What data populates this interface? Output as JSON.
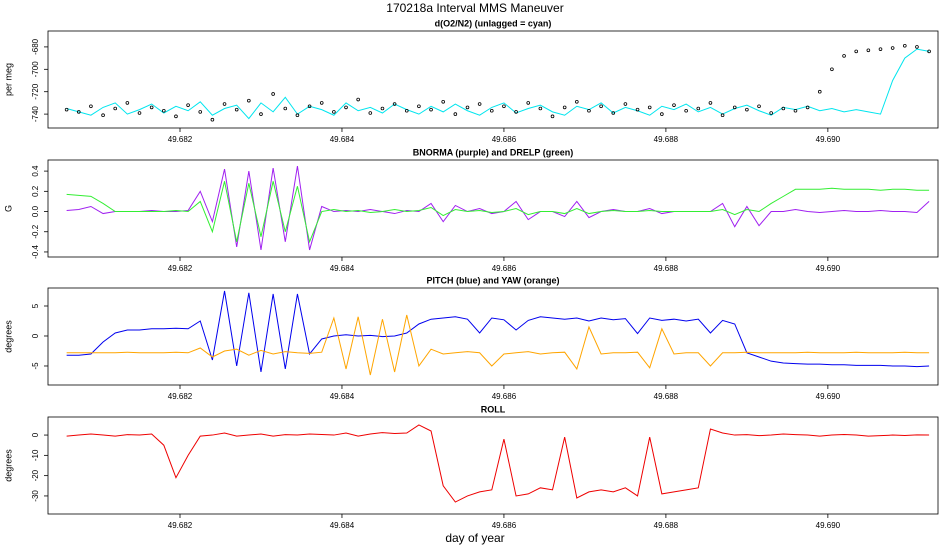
{
  "title": "170218a   Interval MMS Maneuver",
  "xlabel": "day of year",
  "chart_data": [
    {
      "type": "line",
      "title": "d(O2/N2) (unlagged = cyan)",
      "ylabel": "per meg",
      "xlim": [
        49.68037,
        49.69136
      ],
      "xticks": [
        49.682,
        49.684,
        49.686,
        49.688,
        {
          "value": 49.69,
          "label": "49.690"
        }
      ],
      "ylim": [
        -752.4,
        -665.8
      ],
      "yticks": [
        -680,
        -700,
        -720,
        -740
      ],
      "x": [
        49.6806,
        49.68075,
        49.6809,
        49.68105,
        49.6812,
        49.68135,
        49.6815,
        49.68165,
        49.6818,
        49.68195,
        49.6821,
        49.68225,
        49.6824,
        49.68255,
        49.6827,
        49.68285,
        49.683,
        49.68315,
        49.6833,
        49.68345,
        49.6836,
        49.68375,
        49.6839,
        49.68405,
        49.6842,
        49.68435,
        49.6845,
        49.68465,
        49.6848,
        49.68495,
        49.6851,
        49.68525,
        49.6854,
        49.68555,
        49.6857,
        49.68585,
        49.686,
        49.68615,
        49.6863,
        49.68645,
        49.6866,
        49.68675,
        49.6869,
        49.68705,
        49.6872,
        49.68735,
        49.6875,
        49.68765,
        49.6878,
        49.68795,
        49.6881,
        49.68825,
        49.6884,
        49.68855,
        49.6887,
        49.68885,
        49.689,
        49.68915,
        49.6893,
        49.68945,
        49.6896,
        49.68975,
        49.6899,
        49.69005,
        49.6902,
        49.69035,
        49.6905,
        49.69065,
        49.6908,
        49.69095,
        49.6911,
        49.69125
      ],
      "series": [
        {
          "color": "#00e5ee",
          "marker": "line",
          "values": [
            -735,
            -738,
            -741,
            -734,
            -730,
            -740,
            -736,
            -731,
            -739,
            -733,
            -737,
            -729,
            -741,
            -735,
            -732,
            -744,
            -730,
            -738,
            -725,
            -740,
            -733,
            -736,
            -741,
            -730,
            -737,
            -734,
            -739,
            -731,
            -736,
            -740,
            -733,
            -738,
            -731,
            -737,
            -741,
            -734,
            -730,
            -739,
            -735,
            -732,
            -738,
            -741,
            -733,
            -736,
            -730,
            -739,
            -734,
            -737,
            -741,
            -733,
            -736,
            -731,
            -738,
            -734,
            -740,
            -735,
            -732,
            -737,
            -741,
            -734,
            -736,
            -733,
            -737,
            -735,
            -738,
            -736,
            -738,
            -740,
            -710,
            -690,
            -682,
            -684
          ]
        },
        {
          "color": "#000000",
          "marker": "point",
          "values": [
            -736,
            -738,
            -733,
            -741,
            -735,
            -730,
            -739,
            -734,
            -737,
            -742,
            -732,
            -738,
            -745,
            -731,
            -736,
            -728,
            -740,
            -722,
            -735,
            -741,
            -733,
            -730,
            -738,
            -734,
            -727,
            -739,
            -735,
            -731,
            -737,
            -733,
            -736,
            -729,
            -740,
            -734,
            -731,
            -737,
            -733,
            -738,
            -730,
            -735,
            -742,
            -734,
            -729,
            -737,
            -733,
            -739,
            -731,
            -736,
            -734,
            -740,
            -732,
            -737,
            -735,
            -730,
            -741,
            -734,
            -736,
            -733,
            -739,
            -735,
            -737,
            -734,
            -720,
            -700,
            -688,
            -684,
            -683,
            -682,
            -681,
            -679,
            -680,
            -684
          ]
        }
      ]
    },
    {
      "type": "line",
      "title": "BNORMA (purple) and DRELP (green)",
      "ylabel": "G",
      "xlim": [
        49.68037,
        49.69136
      ],
      "xticks": [
        49.682,
        49.684,
        49.686,
        49.688,
        {
          "value": 49.69,
          "label": "49.690"
        }
      ],
      "ylim": [
        -0.45,
        0.51
      ],
      "yticks": [
        0.4,
        0.2,
        {
          "value": 0,
          "label": "0.0"
        },
        -0.2,
        -0.4
      ],
      "x": [
        49.6806,
        49.68075,
        49.6809,
        49.68105,
        49.6812,
        49.68135,
        49.6815,
        49.68165,
        49.6818,
        49.68195,
        49.6821,
        49.68225,
        49.6824,
        49.68255,
        49.6827,
        49.68285,
        49.683,
        49.68315,
        49.6833,
        49.68345,
        49.6836,
        49.68375,
        49.6839,
        49.68405,
        49.6842,
        49.68435,
        49.6845,
        49.68465,
        49.6848,
        49.68495,
        49.6851,
        49.68525,
        49.6854,
        49.68555,
        49.6857,
        49.68585,
        49.686,
        49.68615,
        49.6863,
        49.68645,
        49.6866,
        49.68675,
        49.6869,
        49.68705,
        49.6872,
        49.68735,
        49.6875,
        49.68765,
        49.6878,
        49.68795,
        49.6881,
        49.68825,
        49.6884,
        49.68855,
        49.6887,
        49.68885,
        49.689,
        49.68915,
        49.6893,
        49.68945,
        49.6896,
        49.68975,
        49.6899,
        49.69005,
        49.6902,
        49.69035,
        49.6905,
        49.69065,
        49.6908,
        49.69095,
        49.6911,
        49.69125
      ],
      "series": [
        {
          "color": "#a020f0",
          "marker": "line",
          "values": [
            0.01,
            0.02,
            0.05,
            -0.02,
            0,
            0,
            0,
            0.01,
            0,
            0,
            0.01,
            0.2,
            -0.1,
            0.42,
            -0.35,
            0.4,
            -0.38,
            0.43,
            -0.3,
            0.45,
            -0.38,
            0.05,
            0,
            0.01,
            0,
            0.02,
            0,
            -0.02,
            0.01,
            0,
            0.08,
            -0.1,
            0.06,
            0,
            0.03,
            -0.02,
            0,
            0.1,
            -0.08,
            0,
            0,
            -0.05,
            0.1,
            -0.06,
            0,
            0.02,
            0,
            0,
            0.03,
            -0.02,
            0,
            0,
            0,
            0,
            0.08,
            -0.15,
            0.05,
            -0.14,
            0,
            0,
            0.02,
            0,
            -0.01,
            0,
            0.01,
            0,
            0,
            0.01,
            0,
            0,
            -0.01,
            0.1
          ]
        },
        {
          "color": "#33ee33",
          "marker": "line",
          "values": [
            0.17,
            0.16,
            0.15,
            0.08,
            0,
            0,
            0,
            0,
            0,
            0.01,
            0,
            0.1,
            -0.2,
            0.3,
            -0.3,
            0.28,
            -0.25,
            0.3,
            -0.2,
            0.25,
            -0.3,
            0,
            0.02,
            0,
            0.01,
            -0.01,
            0,
            0.02,
            0,
            0.01,
            0.04,
            -0.04,
            0.02,
            0,
            0.01,
            -0.01,
            0,
            0.03,
            -0.03,
            0,
            0,
            -0.02,
            0.03,
            -0.02,
            0,
            0.01,
            0,
            0,
            0.01,
            0,
            0,
            0,
            0,
            0,
            0.02,
            -0.03,
            0.02,
            0,
            0.08,
            0.15,
            0.22,
            0.22,
            0.22,
            0.23,
            0.22,
            0.22,
            0.22,
            0.21,
            0.22,
            0.22,
            0.21,
            0.21
          ]
        }
      ]
    },
    {
      "type": "line",
      "title": "PITCH (blue) and YAW (orange)",
      "ylabel": "degrees",
      "xlim": [
        49.68037,
        49.69136
      ],
      "xticks": [
        49.682,
        49.684,
        49.686,
        49.688,
        {
          "value": 49.69,
          "label": "49.690"
        }
      ],
      "ylim": [
        -8.17,
        8
      ],
      "yticks": [
        5,
        0,
        -5
      ],
      "x": [
        49.6806,
        49.68075,
        49.6809,
        49.68105,
        49.6812,
        49.68135,
        49.6815,
        49.68165,
        49.6818,
        49.68195,
        49.6821,
        49.68225,
        49.6824,
        49.68255,
        49.6827,
        49.68285,
        49.683,
        49.68315,
        49.6833,
        49.68345,
        49.6836,
        49.68375,
        49.6839,
        49.68405,
        49.6842,
        49.68435,
        49.6845,
        49.68465,
        49.6848,
        49.68495,
        49.6851,
        49.68525,
        49.6854,
        49.68555,
        49.6857,
        49.68585,
        49.686,
        49.68615,
        49.6863,
        49.68645,
        49.6866,
        49.68675,
        49.6869,
        49.68705,
        49.6872,
        49.68735,
        49.6875,
        49.68765,
        49.6878,
        49.68795,
        49.6881,
        49.68825,
        49.6884,
        49.68855,
        49.6887,
        49.68885,
        49.689,
        49.68915,
        49.6893,
        49.68945,
        49.6896,
        49.68975,
        49.6899,
        49.69005,
        49.6902,
        49.69035,
        49.6905,
        49.69065,
        49.6908,
        49.69095,
        49.6911,
        49.69125
      ],
      "series": [
        {
          "color": "#0000ee",
          "marker": "line",
          "values": [
            -3.2,
            -3.2,
            -3,
            -1,
            0.5,
            1,
            1,
            1.2,
            1.2,
            1.3,
            1.2,
            2.5,
            -4,
            7.5,
            -5,
            7.2,
            -6,
            7,
            -5.5,
            7,
            -3,
            -0.5,
            0,
            0.2,
            0,
            0.1,
            -0.1,
            0,
            0.5,
            2,
            2.8,
            3,
            3.2,
            2.8,
            0.5,
            3,
            2.7,
            1,
            2.6,
            3.2,
            3,
            2.8,
            3,
            2.5,
            3,
            2.7,
            2.9,
            0.4,
            3,
            2.6,
            2.8,
            2.5,
            2.8,
            0.5,
            2.6,
            2,
            -2.8,
            -3.5,
            -4.2,
            -4.5,
            -4.6,
            -4.7,
            -4.7,
            -4.8,
            -4.8,
            -4.9,
            -4.9,
            -4.9,
            -5,
            -5,
            -5.1,
            -5
          ]
        },
        {
          "color": "#ffa500",
          "marker": "line",
          "values": [
            -2.8,
            -2.8,
            -2.8,
            -2.8,
            -2.8,
            -2.7,
            -2.8,
            -2.8,
            -2.8,
            -2.7,
            -2.8,
            -2,
            -3.5,
            -2.5,
            -2.2,
            -3.2,
            -2.4,
            -3,
            -2.6,
            -2.8,
            -2.9,
            -2.7,
            3,
            -5.5,
            3.2,
            -6.5,
            2.8,
            -6,
            3.5,
            -5,
            -2.2,
            -3,
            -2.8,
            -2.6,
            -2.8,
            -5,
            -3,
            -2.8,
            -2.6,
            -3,
            -2.8,
            -2.7,
            -5.5,
            1.5,
            -3,
            -2.8,
            -2.8,
            -2.7,
            -5.3,
            1.2,
            -3,
            -2.8,
            -2.8,
            -5,
            -2.8,
            -2.8,
            -2.7,
            -2.8,
            -2.8,
            -2.8,
            -2.8,
            -2.7,
            -2.8,
            -2.8,
            -2.8,
            -2.7,
            -2.8,
            -2.8,
            -2.8,
            -2.7,
            -2.8,
            -2.8
          ]
        }
      ]
    },
    {
      "type": "line",
      "title": "ROLL",
      "ylabel": "degrees",
      "xlim": [
        49.68037,
        49.69136
      ],
      "xticks": [
        49.682,
        49.684,
        49.686,
        49.688,
        {
          "value": 49.69,
          "label": "49.690"
        }
      ],
      "ylim": [
        -38.9,
        8.9
      ],
      "yticks": [
        0,
        -10,
        -20,
        -30
      ],
      "x": [
        49.6806,
        49.68075,
        49.6809,
        49.68105,
        49.6812,
        49.68135,
        49.6815,
        49.68165,
        49.6818,
        49.68195,
        49.6821,
        49.68225,
        49.6824,
        49.68255,
        49.6827,
        49.68285,
        49.683,
        49.68315,
        49.6833,
        49.68345,
        49.6836,
        49.68375,
        49.6839,
        49.68405,
        49.6842,
        49.68435,
        49.6845,
        49.68465,
        49.6848,
        49.68495,
        49.6851,
        49.68525,
        49.6854,
        49.68555,
        49.6857,
        49.68585,
        49.686,
        49.68615,
        49.6863,
        49.68645,
        49.6866,
        49.68675,
        49.6869,
        49.68705,
        49.6872,
        49.68735,
        49.6875,
        49.68765,
        49.6878,
        49.68795,
        49.6881,
        49.68825,
        49.6884,
        49.68855,
        49.6887,
        49.68885,
        49.689,
        49.68915,
        49.6893,
        49.68945,
        49.6896,
        49.68975,
        49.6899,
        49.69005,
        49.6902,
        49.69035,
        49.6905,
        49.69065,
        49.6908,
        49.69095,
        49.6911,
        49.69125
      ],
      "series": [
        {
          "color": "#ee0000",
          "marker": "line",
          "values": [
            -0.5,
            0,
            0.5,
            0,
            -0.5,
            0.2,
            0,
            0.5,
            -5,
            -21,
            -10,
            -0.5,
            0,
            1,
            -0.5,
            0,
            0.5,
            -0.5,
            0.2,
            0,
            0.5,
            0.3,
            0,
            1,
            -0.5,
            0.5,
            1.2,
            0.8,
            1,
            5,
            2,
            -25,
            -33,
            -30,
            -28,
            -27,
            -2,
            -30,
            -29,
            -26,
            -27,
            -1,
            -31,
            -28,
            -27,
            -28,
            -26,
            -30,
            -1,
            -29,
            -28,
            -27,
            -26,
            3,
            1,
            0,
            0.2,
            -0.3,
            0,
            0.5,
            0.2,
            0,
            -0.5,
            0,
            0.3,
            0,
            -0.5,
            -0.3,
            0,
            -0.2,
            0.1,
            0
          ]
        }
      ]
    }
  ]
}
